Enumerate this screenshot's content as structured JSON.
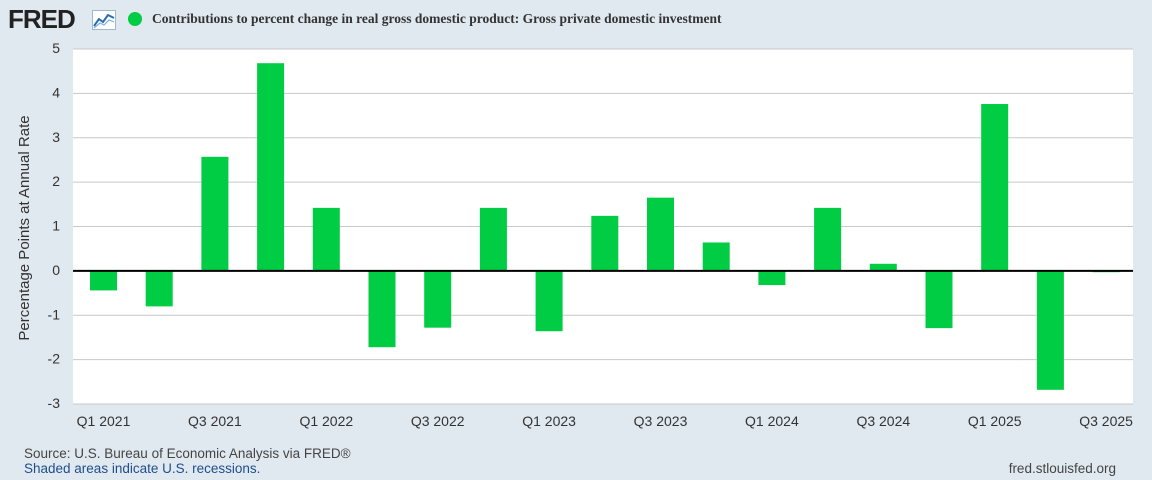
{
  "header": {
    "logo_text": "FRED",
    "logo_icon": "line-chart-icon",
    "title": "Contributions to percent change in real gross domestic product: Gross private domestic investment"
  },
  "footer": {
    "source": "Source: U.S. Bureau of Economic Analysis via FRED®",
    "recession_note": "Shaded areas indicate U.S. recessions.",
    "url": "fred.stlouisfed.org"
  },
  "colors": {
    "bar": "#00cc44",
    "background": "#e1e9f0",
    "plot_background": "#ffffff",
    "grid": "#c8c8c8",
    "zero_line": "#000000"
  },
  "chart_data": {
    "type": "bar",
    "title": "Contributions to percent change in real gross domestic product: Gross private domestic investment",
    "xlabel": "",
    "ylabel": "Percentage Points at Annual Rate",
    "ylim": [
      -3,
      5
    ],
    "yticks": [
      5,
      4,
      3,
      2,
      1,
      0,
      -1,
      -2,
      -3
    ],
    "grid": true,
    "categories": [
      "Q1 2021",
      "Q2 2021",
      "Q3 2021",
      "Q4 2021",
      "Q1 2022",
      "Q2 2022",
      "Q3 2022",
      "Q4 2022",
      "Q1 2023",
      "Q2 2023",
      "Q3 2023",
      "Q4 2023",
      "Q1 2024",
      "Q2 2024",
      "Q3 2024",
      "Q4 2024",
      "Q1 2025",
      "Q2 2025",
      "Q3 2025"
    ],
    "xtick_labels": [
      "Q1 2021",
      "",
      "Q3 2021",
      "",
      "Q1 2022",
      "",
      "Q3 2022",
      "",
      "Q1 2023",
      "",
      "Q3 2023",
      "",
      "Q1 2024",
      "",
      "Q3 2024",
      "",
      "Q1 2025",
      "",
      "Q3 2025"
    ],
    "series": [
      {
        "name": "Gross private domestic investment",
        "values": [
          -0.44,
          -0.8,
          2.57,
          4.68,
          1.42,
          -1.72,
          -1.28,
          1.42,
          -1.36,
          1.24,
          1.65,
          0.64,
          -0.32,
          1.42,
          0.16,
          -1.29,
          3.76,
          -2.68,
          -0.03
        ]
      }
    ]
  }
}
